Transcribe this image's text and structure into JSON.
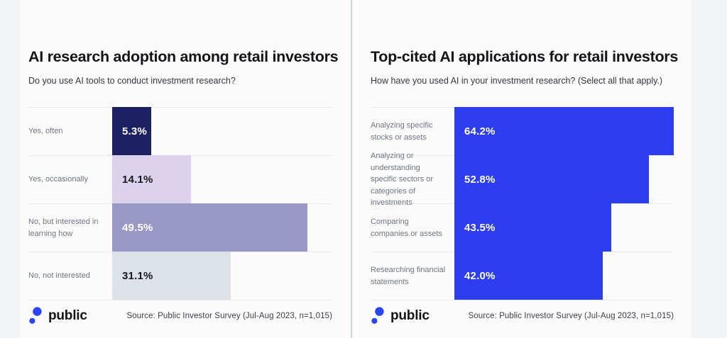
{
  "page": {
    "background": "#f3f4f5",
    "panel_background": "#fbfbfc",
    "divider_color": "#ccd4dc",
    "separator_color": "#e9ebee"
  },
  "brand": {
    "name": "public",
    "logo_dot_color": "#2b46f1"
  },
  "footer": {
    "source": "Source: Public Investor Survey (Jul-Aug 2023, n=1,015)"
  },
  "chart_data": [
    {
      "type": "bar",
      "orientation": "horizontal",
      "title": "AI research adoption among retail investors",
      "subtitle": "Do you use AI tools to conduct investment research?",
      "categories": [
        "Yes, often",
        "Yes, occasionally",
        "No, but interested in learning how",
        "No, not interested"
      ],
      "values": [
        5.3,
        14.1,
        49.5,
        31.1
      ],
      "value_labels": [
        "5.3%",
        "14.1%",
        "49.5%",
        "31.1%"
      ],
      "unit": "%",
      "bar_colors": [
        "#1c2162",
        "#dcd2ee",
        "#9a98c6",
        "#dce2e7"
      ],
      "value_label_colors": [
        "#ffffff",
        "#17181a",
        "#ffffff",
        "#17181a"
      ],
      "display_width_pct": [
        17.7,
        35.8,
        88.7,
        53.9
      ],
      "grid": false,
      "legend": false,
      "axis_ticks": "hidden",
      "source": "Source: Public Investor Survey (Jul-Aug 2023, n=1,015)"
    },
    {
      "type": "bar",
      "orientation": "horizontal",
      "title": "Top-cited AI applications for retail investors",
      "subtitle": "How have you used AI in your investment research? (Select all that apply.)",
      "categories": [
        "Analyzing specific stocks or assets",
        "Analyzing or understanding specific sectors or categories of investments",
        "Comparing companies or assets",
        "Researching financial statements"
      ],
      "values": [
        64.2,
        52.8,
        43.5,
        42.0
      ],
      "value_labels": [
        "64.2%",
        "52.8%",
        "43.5%",
        "42.0%"
      ],
      "unit": "%",
      "bar_colors": [
        "#2c3ef0",
        "#2c3ef0",
        "#2c3ef0",
        "#2c3ef0"
      ],
      "value_label_colors": [
        "#ffffff",
        "#ffffff",
        "#ffffff",
        "#ffffff"
      ],
      "display_width_pct": [
        100,
        88.7,
        71.4,
        67.5
      ],
      "grid": false,
      "legend": false,
      "axis_ticks": "hidden",
      "source": "Source: Public Investor Survey (Jul-Aug 2023, n=1,015)"
    }
  ]
}
